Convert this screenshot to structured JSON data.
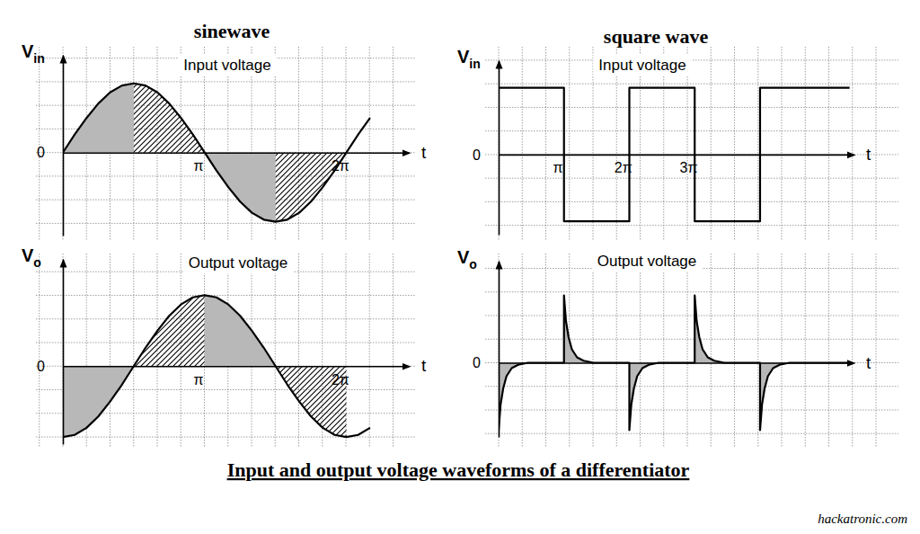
{
  "title": "Input and output voltage waveforms of a differentiator",
  "source": "hackatronic.com",
  "column_titles": [
    "sinewave",
    "square wave"
  ],
  "chart_data": [
    {
      "type": "line",
      "title": "Input voltage",
      "x_label": "t",
      "y_label": "Vin",
      "xlim": [
        0,
        2.44
      ],
      "ylim": [
        -1.2,
        1.4
      ],
      "xticks": [
        {
          "value": 1,
          "label": "π"
        },
        {
          "value": 2,
          "label": "2π"
        }
      ],
      "yticks": [
        0
      ],
      "grid": true,
      "series": [
        {
          "type": "area",
          "color": "#b8b8b8",
          "x": [
            0,
            0.083,
            0.167,
            0.25,
            0.333,
            0.417,
            0.5
          ],
          "values": [
            0,
            0.26,
            0.5,
            0.71,
            0.87,
            0.97,
            1
          ]
        },
        {
          "type": "area",
          "color": "#000000",
          "line_style": "hatched",
          "x": [
            0.5,
            0.583,
            0.667,
            0.75,
            0.833,
            0.917,
            1
          ],
          "values": [
            1,
            0.97,
            0.87,
            0.71,
            0.5,
            0.26,
            0
          ]
        },
        {
          "type": "area",
          "color": "#b8b8b8",
          "x": [
            1,
            1.083,
            1.167,
            1.25,
            1.333,
            1.417,
            1.5
          ],
          "values": [
            0,
            -0.26,
            -0.5,
            -0.71,
            -0.87,
            -0.97,
            -1
          ]
        },
        {
          "type": "area",
          "color": "#000000",
          "line_style": "hatched",
          "x": [
            1.5,
            1.583,
            1.667,
            1.75,
            1.833,
            1.917,
            2
          ],
          "values": [
            -1,
            -0.97,
            -0.87,
            -0.71,
            -0.5,
            -0.26,
            0
          ]
        },
        {
          "type": "line",
          "color": "#000000",
          "x": [
            0,
            0.083,
            0.167,
            0.25,
            0.333,
            0.417,
            0.5,
            0.583,
            0.667,
            0.75,
            0.833,
            0.917,
            1,
            1.083,
            1.167,
            1.25,
            1.333,
            1.417,
            1.5,
            1.583,
            1.667,
            1.75,
            1.833,
            1.917,
            2,
            2.083,
            2.167
          ],
          "values": [
            0,
            0.26,
            0.5,
            0.71,
            0.87,
            0.97,
            1,
            0.97,
            0.87,
            0.71,
            0.5,
            0.26,
            0,
            -0.26,
            -0.5,
            -0.71,
            -0.87,
            -0.97,
            -1,
            -0.97,
            -0.87,
            -0.71,
            -0.5,
            -0.26,
            0,
            0.26,
            0.5
          ]
        }
      ]
    },
    {
      "type": "line",
      "title": "Output voltage",
      "x_label": "t",
      "y_label": "Vo",
      "xlim": [
        0,
        2.44
      ],
      "ylim": [
        -1.1,
        1.5
      ],
      "xticks": [
        {
          "value": 1,
          "label": "π"
        },
        {
          "value": 2,
          "label": "2π"
        }
      ],
      "yticks": [
        0
      ],
      "grid": true,
      "series": [
        {
          "type": "area",
          "color": "#b8b8b8",
          "x": [
            0,
            0.083,
            0.167,
            0.25,
            0.333,
            0.417,
            0.5
          ],
          "values": [
            -1,
            -0.97,
            -0.87,
            -0.71,
            -0.5,
            -0.26,
            0
          ]
        },
        {
          "type": "area",
          "color": "#000000",
          "line_style": "hatched",
          "x": [
            0.5,
            0.583,
            0.667,
            0.75,
            0.833,
            0.917,
            1
          ],
          "values": [
            0,
            0.26,
            0.5,
            0.71,
            0.87,
            0.97,
            1
          ]
        },
        {
          "type": "area",
          "color": "#b8b8b8",
          "x": [
            1,
            1.083,
            1.167,
            1.25,
            1.333,
            1.417,
            1.5
          ],
          "values": [
            1,
            0.97,
            0.87,
            0.71,
            0.5,
            0.26,
            0
          ]
        },
        {
          "type": "area",
          "color": "#000000",
          "line_style": "hatched",
          "x": [
            1.5,
            1.583,
            1.667,
            1.75,
            1.833,
            1.917,
            2
          ],
          "values": [
            0,
            -0.26,
            -0.5,
            -0.71,
            -0.87,
            -0.97,
            -1
          ]
        },
        {
          "type": "line",
          "color": "#000000",
          "x": [
            0,
            0.083,
            0.167,
            0.25,
            0.333,
            0.417,
            0.5,
            0.583,
            0.667,
            0.75,
            0.833,
            0.917,
            1,
            1.083,
            1.167,
            1.25,
            1.333,
            1.417,
            1.5,
            1.583,
            1.667,
            1.75,
            1.833,
            1.917,
            2,
            2.083,
            2.167
          ],
          "values": [
            -1,
            -0.97,
            -0.87,
            -0.71,
            -0.5,
            -0.26,
            0,
            0.26,
            0.5,
            0.71,
            0.87,
            0.97,
            1,
            0.97,
            0.87,
            0.71,
            0.5,
            0.26,
            0,
            -0.26,
            -0.5,
            -0.71,
            -0.87,
            -0.97,
            -1,
            -0.97,
            -0.87
          ]
        }
      ]
    },
    {
      "type": "line",
      "title": "Input voltage",
      "x_label": "t",
      "y_label": "Vin",
      "xlim": [
        0,
        5.43
      ],
      "ylim": [
        -1.2,
        1.4
      ],
      "xticks": [
        {
          "value": 1,
          "label": "π"
        },
        {
          "value": 2,
          "label": "2π"
        },
        {
          "value": 3,
          "label": "3π"
        }
      ],
      "yticks": [
        0
      ],
      "grid": true,
      "series": [
        {
          "type": "line",
          "color": "#000000",
          "x": [
            0,
            1,
            1,
            2,
            2,
            3,
            3,
            4,
            4,
            5.37
          ],
          "values": [
            1,
            1,
            -1,
            -1,
            1,
            1,
            -1,
            -1,
            1,
            1
          ]
        }
      ]
    },
    {
      "type": "line",
      "title": "Output voltage",
      "x_label": "t",
      "y_label": "Vo",
      "xlim": [
        0,
        5.43
      ],
      "ylim": [
        -1.1,
        1.5
      ],
      "xticks": [],
      "yticks": [
        0
      ],
      "grid": true,
      "series": [
        {
          "type": "area",
          "color": "#b8b8b8",
          "x": [
            0,
            0,
            0.03,
            0.07,
            0.12,
            0.2,
            0.3,
            0.45,
            1,
            1,
            1.03,
            1.07,
            1.12,
            1.2,
            1.3,
            1.45,
            2,
            2,
            2.03,
            2.07,
            2.12,
            2.2,
            2.3,
            2.45,
            3,
            3,
            3.03,
            3.07,
            3.12,
            3.2,
            3.3,
            3.45,
            4,
            4,
            4.03,
            4.07,
            4.12,
            4.2,
            4.3,
            4.45,
            5.37
          ],
          "values": [
            0,
            -1,
            -0.62,
            -0.38,
            -0.2,
            -0.08,
            -0.03,
            0,
            0,
            1,
            0.62,
            0.38,
            0.2,
            0.08,
            0.03,
            0,
            0,
            -1,
            -0.62,
            -0.38,
            -0.2,
            -0.08,
            -0.03,
            0,
            0,
            1,
            0.62,
            0.38,
            0.2,
            0.08,
            0.03,
            0,
            0,
            -1,
            -0.62,
            -0.38,
            -0.2,
            -0.08,
            -0.03,
            0,
            0
          ]
        },
        {
          "type": "line",
          "color": "#000000",
          "x": [
            0,
            0,
            0.03,
            0.07,
            0.12,
            0.2,
            0.3,
            0.45,
            1,
            1,
            1.03,
            1.07,
            1.12,
            1.2,
            1.3,
            1.45,
            2,
            2,
            2.03,
            2.07,
            2.12,
            2.2,
            2.3,
            2.45,
            3,
            3,
            3.03,
            3.07,
            3.12,
            3.2,
            3.3,
            3.45,
            4,
            4,
            4.03,
            4.07,
            4.12,
            4.2,
            4.3,
            4.45,
            5.37
          ],
          "values": [
            0,
            -1,
            -0.62,
            -0.38,
            -0.2,
            -0.08,
            -0.03,
            0,
            0,
            1,
            0.62,
            0.38,
            0.2,
            0.08,
            0.03,
            0,
            0,
            -1,
            -0.62,
            -0.38,
            -0.2,
            -0.08,
            -0.03,
            0,
            0,
            1,
            0.62,
            0.38,
            0.2,
            0.08,
            0.03,
            0,
            0,
            -1,
            -0.62,
            -0.38,
            -0.2,
            -0.08,
            -0.03,
            0,
            0
          ]
        }
      ]
    }
  ]
}
